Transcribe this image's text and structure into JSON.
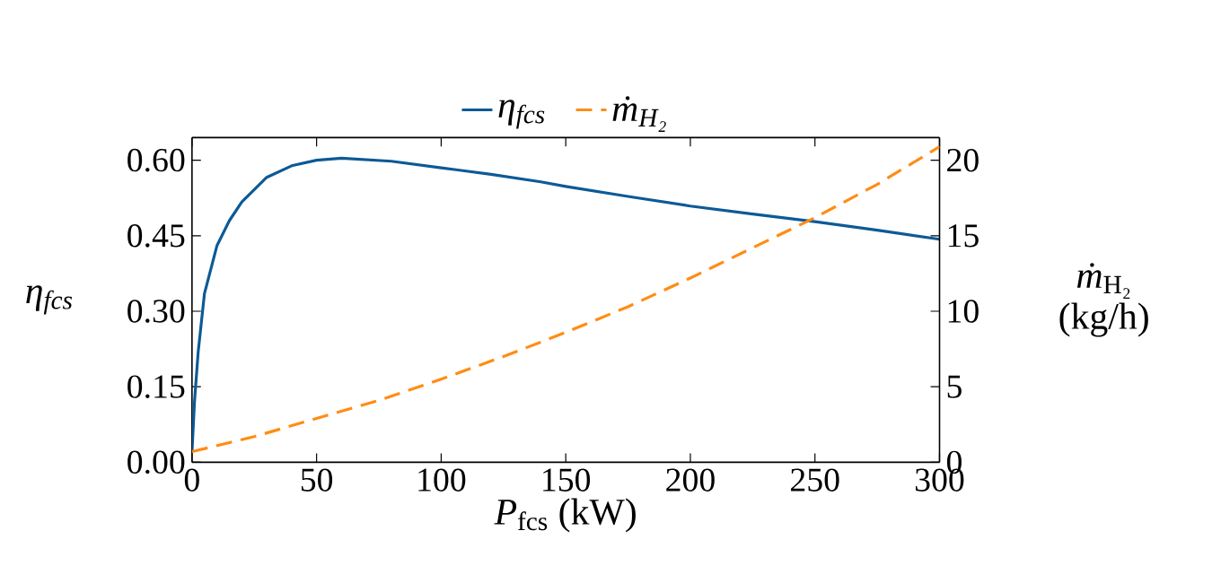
{
  "chart_data": {
    "type": "line",
    "xlabel": "*P*$_{fcs}$ (kW)",
    "ylabel": "η$_{fcs}$",
    "y2label": "*ṁ*$_{H₂}$ (kg/h)",
    "legend": "top",
    "grid": false,
    "marker": "none",
    "xlim": [
      0,
      300
    ],
    "xticks": [
      0,
      50,
      100,
      150,
      200,
      250,
      300
    ],
    "ylim": [
      0,
      0.645
    ],
    "yticks": [
      {
        "value": 0,
        "label": "0.00"
      },
      {
        "value": 0.15,
        "label": "0.15"
      },
      {
        "value": 0.3,
        "label": "0.30"
      },
      {
        "value": 0.45,
        "label": "0.45"
      },
      {
        "value": 0.6,
        "label": "0.60"
      }
    ],
    "y2lim": [
      0,
      21.5
    ],
    "y2ticks": [
      0,
      5,
      10,
      15,
      20
    ],
    "series": [
      {
        "name": "η$_{fcs}$",
        "color": "#0c5a96",
        "line_style": "solid",
        "x": [
          0,
          1,
          2.5,
          5,
          10,
          15,
          20,
          30,
          40,
          50,
          60,
          80,
          100,
          120,
          140,
          150,
          175,
          200,
          225,
          250,
          275,
          300
        ],
        "values": [
          0.02,
          0.12,
          0.22,
          0.335,
          0.43,
          0.48,
          0.517,
          0.566,
          0.589,
          0.6,
          0.604,
          0.598,
          0.585,
          0.572,
          0.557,
          0.548,
          0.528,
          0.509,
          0.493,
          0.478,
          0.461,
          0.443
        ]
      },
      {
        "name": "ṁ$_{H₂}$",
        "color": "#ff8c14",
        "line_style": "dashed",
        "axis": "y2",
        "x": [
          0,
          25,
          50,
          75,
          100,
          125,
          150,
          175,
          200,
          225,
          250,
          275,
          300
        ],
        "values": [
          0.7,
          1.7,
          2.9,
          4.1,
          5.5,
          7.0,
          8.6,
          10.3,
          12.2,
          14.2,
          16.2,
          18.4,
          20.9
        ]
      }
    ]
  }
}
